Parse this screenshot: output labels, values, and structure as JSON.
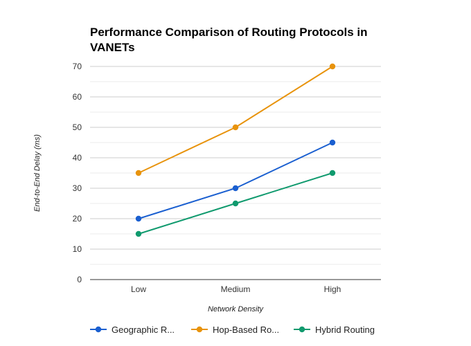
{
  "chart_data": {
    "type": "line",
    "title_line1": "Performance Comparison of Routing Protocols in",
    "title_line2": "VANETs",
    "xlabel": "Network Density",
    "ylabel": "End-to-End Delay (ms)",
    "categories": [
      "Low",
      "Medium",
      "High"
    ],
    "ylim": [
      0,
      70
    ],
    "y_ticks": [
      "0",
      "10",
      "20",
      "30",
      "40",
      "50",
      "60",
      "70"
    ],
    "grid": true,
    "legend_position": "bottom",
    "series": [
      {
        "name": "Geographic R...",
        "color": "#1a5fd0",
        "values": [
          20,
          30,
          45
        ]
      },
      {
        "name": "Hop-Based Ro...",
        "color": "#e8930c",
        "values": [
          35,
          50,
          70
        ]
      },
      {
        "name": "Hybrid Routing",
        "color": "#109a6e",
        "values": [
          15,
          25,
          35
        ]
      }
    ]
  }
}
